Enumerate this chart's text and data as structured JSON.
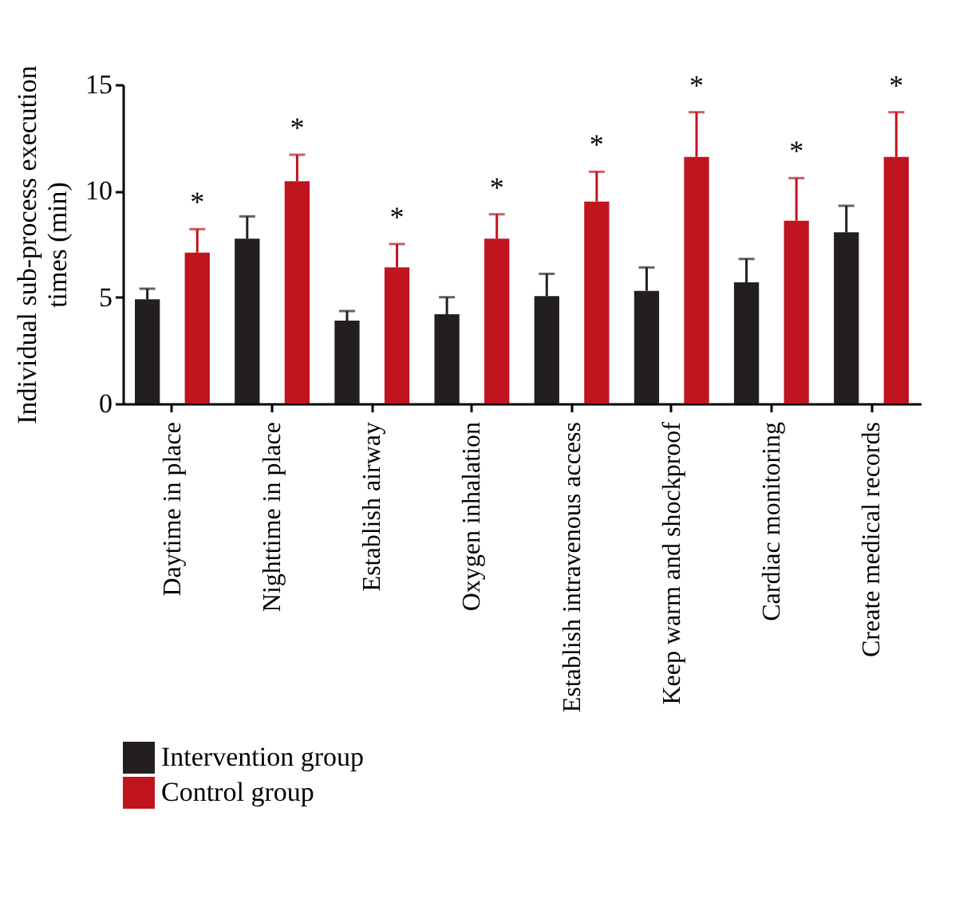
{
  "chart_data": {
    "type": "bar",
    "ylabel": "Individual sub-process execution times (min)",
    "categories": [
      "Daytime in place",
      "Nighttime in place",
      "Establish airway",
      "Oxygen inhalation",
      "Establish intravenous access",
      "Keep warm and shockproof",
      "Cardiac monitoring",
      "Create medical records"
    ],
    "series": [
      {
        "name": "Intervention group",
        "color": "#231f20",
        "values": [
          4.9,
          7.75,
          3.9,
          4.2,
          5.05,
          5.3,
          5.7,
          8.05
        ],
        "errors": [
          [
            4.9,
            5.4
          ],
          [
            7.75,
            8.8
          ],
          [
            3.9,
            4.35
          ],
          [
            4.2,
            5.0
          ],
          [
            5.05,
            6.1
          ],
          [
            5.3,
            6.4
          ],
          [
            5.7,
            6.8
          ],
          [
            8.05,
            9.3
          ]
        ]
      },
      {
        "name": "Control group",
        "color": "#c0141e",
        "values": [
          7.1,
          10.45,
          6.4,
          7.75,
          9.5,
          11.6,
          8.6,
          11.6
        ],
        "errors": [
          [
            7.1,
            8.2
          ],
          [
            10.45,
            11.7
          ],
          [
            6.4,
            7.5
          ],
          [
            7.75,
            8.9
          ],
          [
            9.5,
            10.9
          ],
          [
            11.6,
            13.7
          ],
          [
            8.6,
            10.6
          ],
          [
            11.6,
            13.7
          ]
        ]
      }
    ],
    "ylim": [
      0,
      15
    ],
    "yticks": [
      0,
      5,
      10,
      15
    ],
    "grid": false,
    "legend": "bottom left",
    "annotations": [
      "*",
      "*",
      "*",
      "*",
      "*",
      "*",
      "*",
      "*"
    ]
  }
}
